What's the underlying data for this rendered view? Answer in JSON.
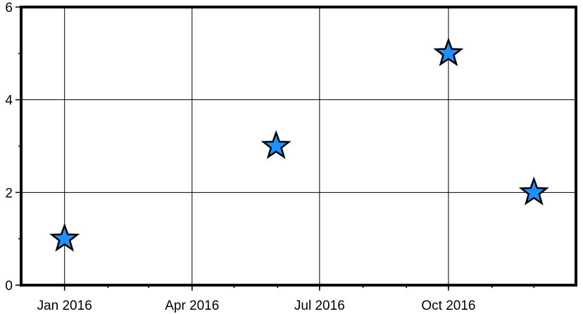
{
  "chart_data": {
    "type": "scatter",
    "title": "",
    "xlabel": "",
    "ylabel": "",
    "x_axis": {
      "type": "date",
      "range": [
        "2015-12-01",
        "2016-12-31"
      ],
      "major_ticks": [
        {
          "date": "2016-01-01",
          "label": "Jan 2016"
        },
        {
          "date": "2016-04-01",
          "label": "Apr 2016"
        },
        {
          "date": "2016-07-01",
          "label": "Jul 2016"
        },
        {
          "date": "2016-10-01",
          "label": "Oct 2016"
        }
      ],
      "minor_ticks": [
        "2016-01-01",
        "2016-02-01",
        "2016-03-01",
        "2016-04-01",
        "2016-05-01",
        "2016-06-01",
        "2016-07-01",
        "2016-08-01",
        "2016-09-01",
        "2016-10-01",
        "2016-11-01",
        "2016-12-01"
      ]
    },
    "y_axis": {
      "range": [
        0,
        6
      ],
      "major_ticks": [
        {
          "value": 0,
          "label": "0"
        },
        {
          "value": 2,
          "label": "2"
        },
        {
          "value": 4,
          "label": "4"
        },
        {
          "value": 6,
          "label": "6"
        }
      ],
      "minor_ticks": [
        1,
        3,
        5
      ]
    },
    "grid": true,
    "legend": "none",
    "marker": {
      "shape": "star",
      "fill": "#1e90ff",
      "stroke": "#000000"
    },
    "points": [
      {
        "x": "2016-01-01",
        "y": 1
      },
      {
        "x": "2016-05-31",
        "y": 3
      },
      {
        "x": "2016-10-01",
        "y": 5
      },
      {
        "x": "2016-12-01",
        "y": 2
      }
    ]
  }
}
